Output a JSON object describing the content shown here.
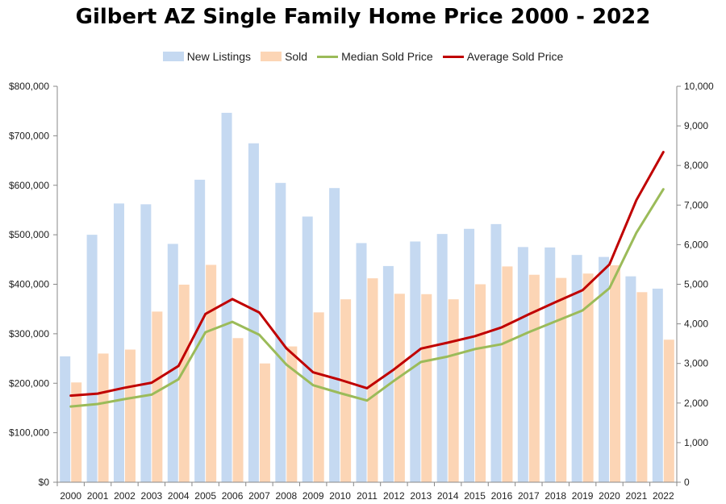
{
  "chart_data": {
    "type": "bar",
    "title": "Gilbert AZ Single Family Home Price 2000 - 2022",
    "categories": [
      "2000",
      "2001",
      "2002",
      "2003",
      "2004",
      "2005",
      "2006",
      "2007",
      "2008",
      "2009",
      "2010",
      "2011",
      "2012",
      "2013",
      "2014",
      "2015",
      "2016",
      "2017",
      "2018",
      "2019",
      "2020",
      "2021",
      "2022"
    ],
    "y_left": {
      "ylim": [
        0,
        800000
      ],
      "tick_labels": [
        "$0",
        "$100,000",
        "$200,000",
        "$300,000",
        "$400,000",
        "$500,000",
        "$600,000",
        "$700,000",
        "$800,000"
      ]
    },
    "y_right": {
      "ylim": [
        0,
        10000
      ],
      "tick_labels": [
        "0",
        "1,000",
        "2,000",
        "3,000",
        "4,000",
        "5,000",
        "6,000",
        "7,000",
        "8,000",
        "9,000",
        "10,000"
      ]
    },
    "legend_position": "top",
    "grid": false,
    "series": [
      {
        "name": "New Listings",
        "type": "bar",
        "axis": "right",
        "color": "#c5d9f1",
        "values": [
          3180,
          6250,
          7040,
          7020,
          6020,
          7640,
          9330,
          8560,
          7560,
          6710,
          7430,
          6040,
          5460,
          6080,
          6270,
          6400,
          6520,
          5940,
          5930,
          5740,
          5690,
          5200,
          4890
        ]
      },
      {
        "name": "Sold",
        "type": "bar",
        "axis": "right",
        "color": "#fcd5b5",
        "values": [
          2520,
          3250,
          3350,
          4310,
          4990,
          5490,
          3640,
          3000,
          3430,
          4290,
          4620,
          5150,
          4760,
          4750,
          4620,
          5000,
          5450,
          5240,
          5160,
          5270,
          5480,
          4800,
          3600
        ]
      },
      {
        "name": "Median Sold Price",
        "type": "line",
        "axis": "left",
        "color": "#9bbb59",
        "values": [
          153000,
          158000,
          168000,
          177000,
          208000,
          303000,
          324000,
          298000,
          238000,
          196000,
          180000,
          165000,
          205000,
          243000,
          254000,
          269000,
          279000,
          303000,
          325000,
          347000,
          392000,
          504000,
          592000
        ]
      },
      {
        "name": "Average Sold Price",
        "type": "line",
        "axis": "left",
        "color": "#c00000",
        "values": [
          175000,
          179000,
          191000,
          201000,
          235000,
          340000,
          370000,
          343000,
          271000,
          222000,
          207000,
          190000,
          228000,
          270000,
          282000,
          295000,
          313000,
          339000,
          364000,
          388000,
          440000,
          570000,
          667000
        ]
      }
    ]
  }
}
